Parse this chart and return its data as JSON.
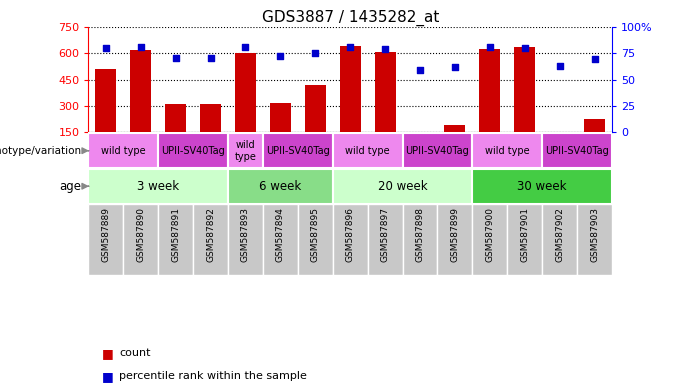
{
  "title": "GDS3887 / 1435282_at",
  "samples": [
    "GSM587889",
    "GSM587890",
    "GSM587891",
    "GSM587892",
    "GSM587893",
    "GSM587894",
    "GSM587895",
    "GSM587896",
    "GSM587897",
    "GSM587898",
    "GSM587899",
    "GSM587900",
    "GSM587901",
    "GSM587902",
    "GSM587903"
  ],
  "counts": [
    510,
    620,
    310,
    310,
    600,
    315,
    420,
    640,
    610,
    155,
    195,
    625,
    635,
    148,
    225
  ],
  "percentiles": [
    80,
    81,
    71,
    71,
    81,
    72,
    75,
    81,
    79,
    59,
    62,
    81,
    80,
    63,
    70
  ],
  "ylim_left": [
    150,
    750
  ],
  "ylim_right": [
    0,
    100
  ],
  "yticks_left": [
    150,
    300,
    450,
    600,
    750
  ],
  "ytick_labels_left": [
    "150",
    "300",
    "450",
    "600",
    "750"
  ],
  "yticks_right": [
    0,
    25,
    50,
    75,
    100
  ],
  "ytick_labels_right": [
    "0",
    "25",
    "50",
    "75",
    "100%"
  ],
  "bar_color": "#cc0000",
  "dot_color": "#0000cc",
  "age_groups": [
    {
      "label": "3 week",
      "start": 0,
      "end": 4,
      "color": "#ccffcc"
    },
    {
      "label": "6 week",
      "start": 4,
      "end": 7,
      "color": "#88dd88"
    },
    {
      "label": "20 week",
      "start": 7,
      "end": 11,
      "color": "#ccffcc"
    },
    {
      "label": "30 week",
      "start": 11,
      "end": 15,
      "color": "#44cc44"
    }
  ],
  "genotype_groups": [
    {
      "label": "wild type",
      "start": 0,
      "end": 2,
      "color": "#ee88ee"
    },
    {
      "label": "UPII-SV40Tag",
      "start": 2,
      "end": 4,
      "color": "#cc44cc"
    },
    {
      "label": "wild\ntype",
      "start": 4,
      "end": 5,
      "color": "#ee88ee"
    },
    {
      "label": "UPII-SV40Tag",
      "start": 5,
      "end": 7,
      "color": "#cc44cc"
    },
    {
      "label": "wild type",
      "start": 7,
      "end": 9,
      "color": "#ee88ee"
    },
    {
      "label": "UPII-SV40Tag",
      "start": 9,
      "end": 11,
      "color": "#cc44cc"
    },
    {
      "label": "wild type",
      "start": 11,
      "end": 13,
      "color": "#ee88ee"
    },
    {
      "label": "UPII-SV40Tag",
      "start": 13,
      "end": 15,
      "color": "#cc44cc"
    }
  ],
  "legend_count_color": "#cc0000",
  "legend_dot_color": "#0000cc",
  "age_label": "age",
  "genotype_label": "genotype/variation",
  "sample_label_bg": "#c8c8c8",
  "background_color": "#ffffff"
}
